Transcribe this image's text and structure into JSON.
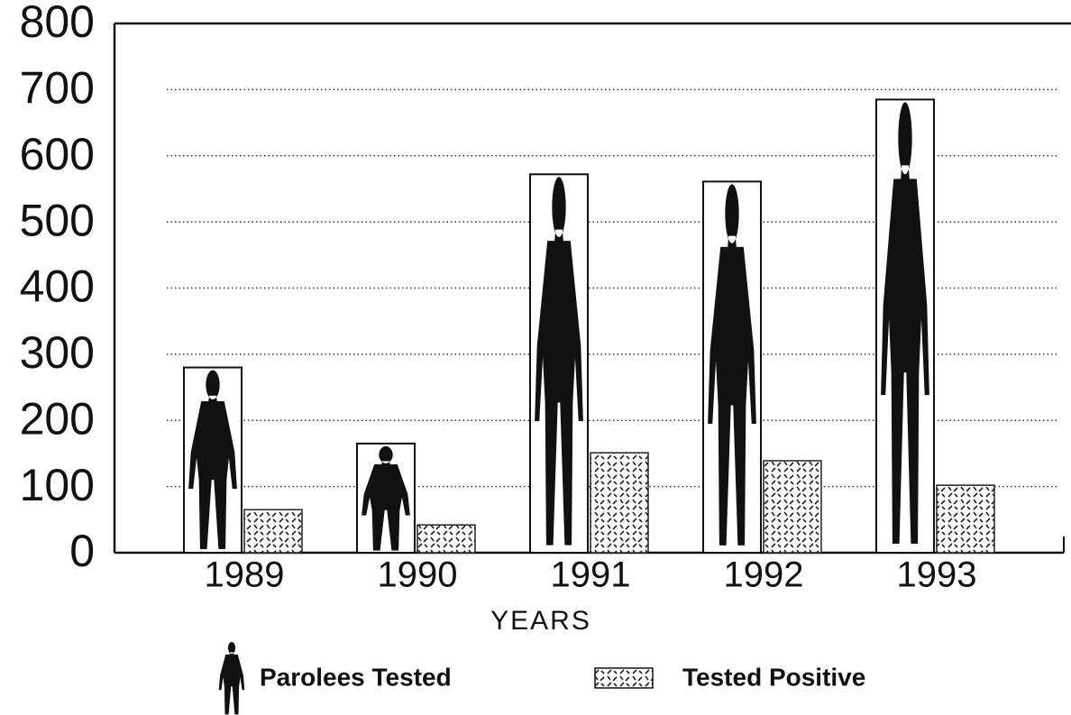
{
  "chart_data": {
    "type": "bar",
    "x_label": "YEARS",
    "categories": [
      "1989",
      "1990",
      "1991",
      "1992",
      "1993"
    ],
    "series": [
      {
        "name": "Parolees Tested",
        "color": "#111111",
        "values": [
          280,
          165,
          572,
          561,
          685
        ]
      },
      {
        "name": "Tested Positive",
        "color": "#222222",
        "values": [
          65,
          42,
          151,
          139,
          102
        ]
      }
    ],
    "ylim": [
      0,
      800
    ],
    "yticks": [
      0,
      100,
      200,
      300,
      400,
      500,
      600,
      700,
      800
    ],
    "grid": true
  }
}
